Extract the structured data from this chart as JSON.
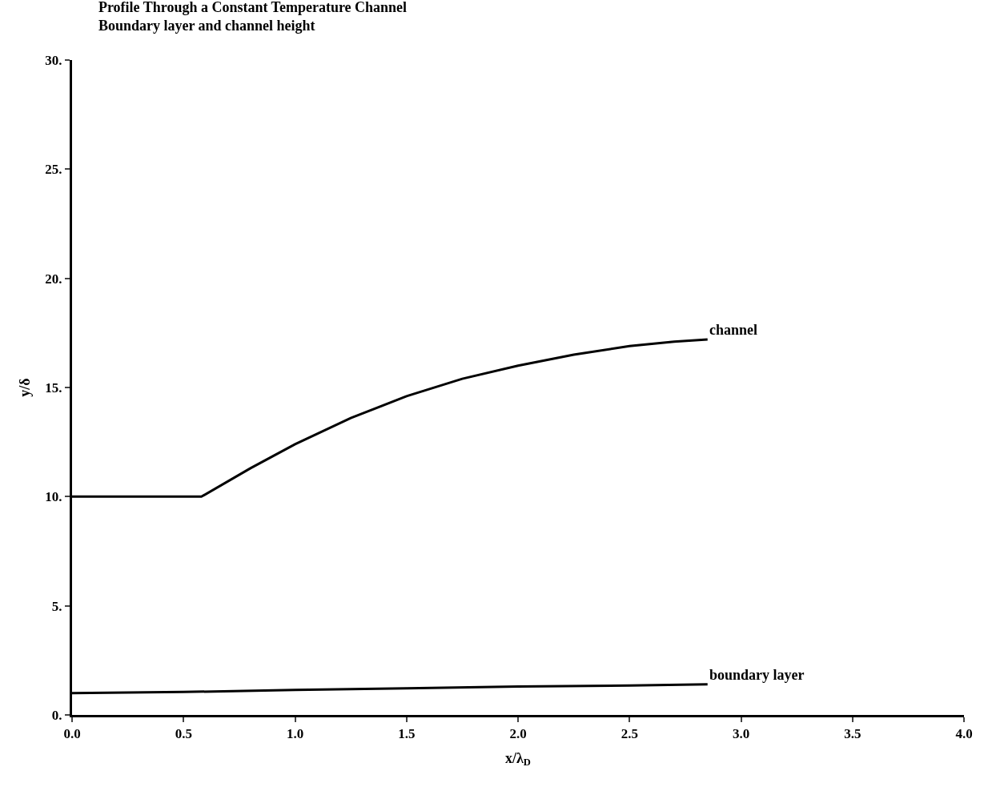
{
  "chart_data": {
    "type": "line",
    "title": "Profile Through a Constant Temperature Channel",
    "subtitle": "Boundary layer and channel height",
    "xlabel": "x/λ$_{D}$",
    "ylabel": "y/δ",
    "xlim": [
      0,
      4
    ],
    "ylim": [
      0,
      30
    ],
    "xticks": [
      {
        "value": 0,
        "label": "0.0"
      },
      {
        "value": 0.5,
        "label": "0.5"
      },
      {
        "value": 1,
        "label": "1.0"
      },
      {
        "value": 1.5,
        "label": "1.5"
      },
      {
        "value": 2,
        "label": "2.0"
      },
      {
        "value": 2.5,
        "label": "2.5"
      },
      {
        "value": 3,
        "label": "3.0"
      },
      {
        "value": 3.5,
        "label": "3.5"
      },
      {
        "value": 4,
        "label": "4.0"
      }
    ],
    "yticks": [
      {
        "value": 0,
        "label": "0."
      },
      {
        "value": 5,
        "label": "5."
      },
      {
        "value": 10,
        "label": "10."
      },
      {
        "value": 15,
        "label": "15."
      },
      {
        "value": 20,
        "label": "20."
      },
      {
        "value": 25,
        "label": "25."
      },
      {
        "value": 30,
        "label": "30."
      }
    ],
    "legend": false,
    "marker": "none",
    "line_style": "solid",
    "series": [
      {
        "name": "channel",
        "color": "#000000",
        "x": [
          0,
          0.58,
          0.8,
          1.0,
          1.25,
          1.5,
          1.75,
          2.0,
          2.25,
          2.5,
          2.7,
          2.85
        ],
        "values": [
          10,
          10,
          11.3,
          12.4,
          13.6,
          14.6,
          15.4,
          16.0,
          16.5,
          16.9,
          17.1,
          17.2
        ]
      },
      {
        "name": "boundary layer",
        "color": "#000000",
        "x": [
          0,
          0.5,
          1.0,
          1.5,
          2.0,
          2.5,
          2.85
        ],
        "values": [
          1.0,
          1.05,
          1.15,
          1.22,
          1.3,
          1.35,
          1.4
        ]
      }
    ]
  }
}
